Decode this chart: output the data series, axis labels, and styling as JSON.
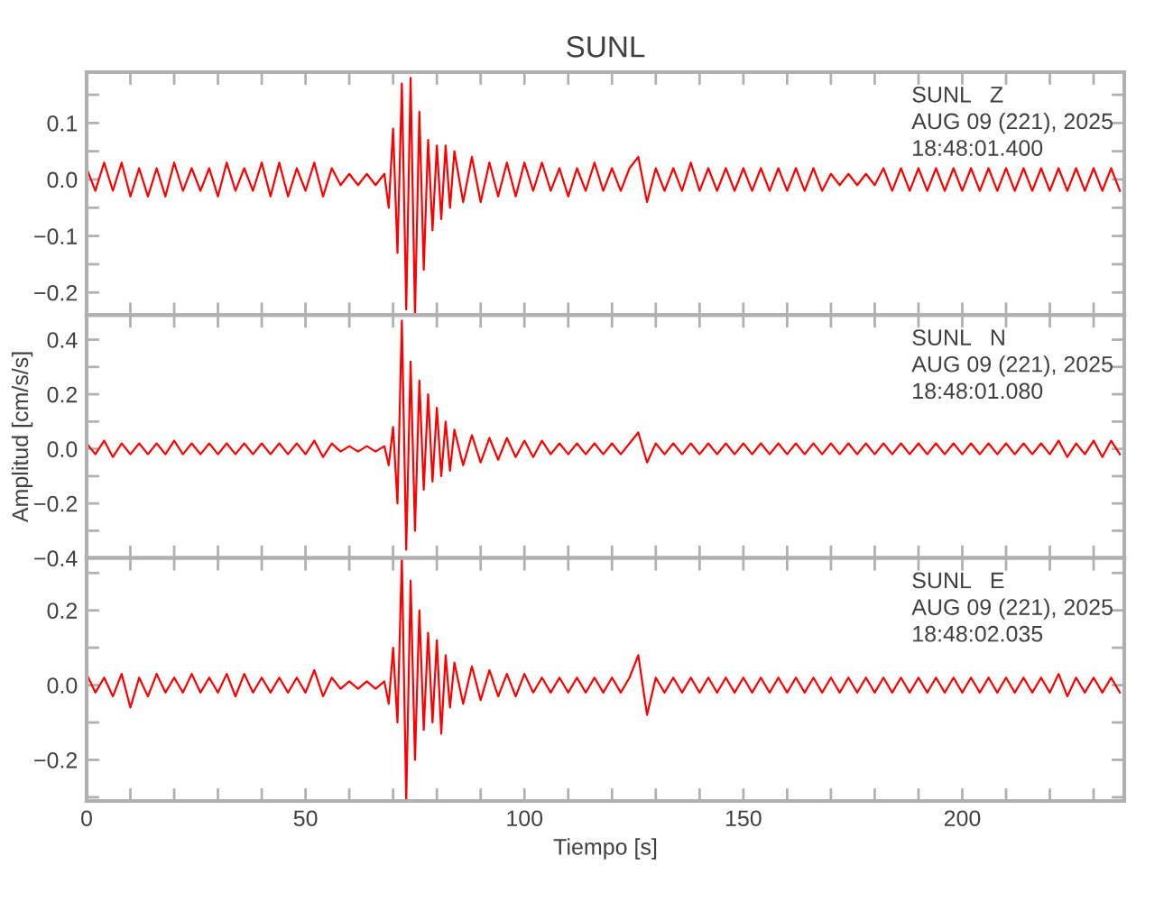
{
  "chart_data": [
    {
      "type": "line",
      "title": "SUNL",
      "tick_labels": "y",
      "grid": false,
      "legend": false,
      "line_style": "solid",
      "xlim": [
        0,
        237
      ],
      "ylim": [
        -0.24,
        0.19
      ],
      "xticks": [
        {
          "value": 0,
          "label": null
        },
        {
          "value": 10,
          "label": null
        },
        {
          "value": 20,
          "label": null
        },
        {
          "value": 30,
          "label": null
        },
        {
          "value": 40,
          "label": null
        },
        {
          "value": 50,
          "label": null
        },
        {
          "value": 60,
          "label": null
        },
        {
          "value": 70,
          "label": null
        },
        {
          "value": 80,
          "label": null
        },
        {
          "value": 90,
          "label": null
        },
        {
          "value": 100,
          "label": null
        },
        {
          "value": 110,
          "label": null
        },
        {
          "value": 120,
          "label": null
        },
        {
          "value": 130,
          "label": null
        },
        {
          "value": 140,
          "label": null
        },
        {
          "value": 150,
          "label": null
        },
        {
          "value": 160,
          "label": null
        },
        {
          "value": 170,
          "label": null
        },
        {
          "value": 180,
          "label": null
        },
        {
          "value": 190,
          "label": null
        },
        {
          "value": 200,
          "label": null
        },
        {
          "value": 210,
          "label": null
        },
        {
          "value": 220,
          "label": null
        },
        {
          "value": 230,
          "label": null
        }
      ],
      "yticks": [
        {
          "value": -0.2,
          "label": "−0.2"
        },
        {
          "value": -0.15,
          "label": null
        },
        {
          "value": -0.1,
          "label": "−0.1"
        },
        {
          "value": -0.05,
          "label": null
        },
        {
          "value": 0.0,
          "label": "0.0"
        },
        {
          "value": 0.05,
          "label": null
        },
        {
          "value": 0.1,
          "label": "0.1"
        },
        {
          "value": 0.15,
          "label": null
        }
      ],
      "annotations": [
        "SUNL   Z",
        "AUG 09 (221), 2025",
        "18:48:01.400"
      ],
      "series": [
        {
          "color": "#ff0000",
          "x": [
            0,
            2,
            4,
            6,
            8,
            10,
            12,
            14,
            16,
            18,
            20,
            22,
            24,
            26,
            28,
            30,
            32,
            34,
            36,
            38,
            40,
            42,
            44,
            46,
            48,
            50,
            52,
            54,
            56,
            58,
            60,
            62,
            64,
            66,
            68,
            69,
            70,
            71,
            72,
            73,
            74,
            75,
            76,
            77,
            78,
            79,
            80,
            81,
            82,
            83,
            84,
            86,
            88,
            90,
            92,
            94,
            96,
            98,
            100,
            102,
            104,
            106,
            108,
            110,
            112,
            114,
            116,
            118,
            120,
            122,
            124,
            126,
            128,
            130,
            132,
            134,
            136,
            138,
            140,
            142,
            144,
            146,
            148,
            150,
            152,
            154,
            156,
            158,
            160,
            162,
            164,
            166,
            168,
            170,
            172,
            174,
            176,
            178,
            180,
            182,
            184,
            186,
            188,
            190,
            192,
            194,
            196,
            198,
            200,
            202,
            204,
            206,
            208,
            210,
            212,
            214,
            216,
            218,
            220,
            222,
            224,
            226,
            228,
            230,
            232,
            234,
            236
          ],
          "values": [
            0.02,
            -0.02,
            0.03,
            -0.02,
            0.03,
            -0.03,
            0.02,
            -0.03,
            0.02,
            -0.03,
            0.03,
            -0.02,
            0.02,
            -0.02,
            0.02,
            -0.03,
            0.03,
            -0.02,
            0.02,
            -0.02,
            0.03,
            -0.03,
            0.03,
            -0.03,
            0.02,
            -0.02,
            0.03,
            -0.03,
            0.02,
            -0.01,
            0.01,
            -0.01,
            0.01,
            -0.01,
            0.01,
            -0.05,
            0.09,
            -0.13,
            0.17,
            -0.23,
            0.18,
            -0.24,
            0.12,
            -0.16,
            0.07,
            -0.09,
            0.06,
            -0.07,
            0.06,
            -0.05,
            0.05,
            -0.04,
            0.04,
            -0.04,
            0.03,
            -0.03,
            0.03,
            -0.03,
            0.03,
            -0.02,
            0.03,
            -0.02,
            0.02,
            -0.03,
            0.02,
            -0.02,
            0.03,
            -0.02,
            0.02,
            -0.02,
            0.02,
            0.04,
            -0.04,
            0.02,
            -0.02,
            0.02,
            -0.02,
            0.03,
            -0.02,
            0.02,
            -0.02,
            0.02,
            -0.02,
            0.02,
            -0.02,
            0.02,
            -0.02,
            0.02,
            -0.02,
            0.02,
            -0.02,
            0.02,
            -0.02,
            0.01,
            -0.01,
            0.01,
            -0.01,
            0.01,
            -0.01,
            0.02,
            -0.02,
            0.02,
            -0.02,
            0.02,
            -0.02,
            0.02,
            -0.02,
            0.02,
            -0.02,
            0.02,
            -0.02,
            0.02,
            -0.02,
            0.02,
            -0.02,
            0.02,
            -0.02,
            0.02,
            -0.02,
            0.02,
            -0.02,
            0.02,
            -0.02,
            0.02,
            -0.02,
            0.02,
            -0.02
          ]
        }
      ]
    },
    {
      "type": "line",
      "ylabel": "Amplitud [cm/s/s]",
      "tick_labels": "y",
      "grid": false,
      "legend": false,
      "line_style": "solid",
      "xlim": [
        0,
        237
      ],
      "ylim": [
        -0.4,
        0.49
      ],
      "xticks": [
        {
          "value": 0,
          "label": null
        },
        {
          "value": 10,
          "label": null
        },
        {
          "value": 20,
          "label": null
        },
        {
          "value": 30,
          "label": null
        },
        {
          "value": 40,
          "label": null
        },
        {
          "value": 50,
          "label": null
        },
        {
          "value": 60,
          "label": null
        },
        {
          "value": 70,
          "label": null
        },
        {
          "value": 80,
          "label": null
        },
        {
          "value": 90,
          "label": null
        },
        {
          "value": 100,
          "label": null
        },
        {
          "value": 110,
          "label": null
        },
        {
          "value": 120,
          "label": null
        },
        {
          "value": 130,
          "label": null
        },
        {
          "value": 140,
          "label": null
        },
        {
          "value": 150,
          "label": null
        },
        {
          "value": 160,
          "label": null
        },
        {
          "value": 170,
          "label": null
        },
        {
          "value": 180,
          "label": null
        },
        {
          "value": 190,
          "label": null
        },
        {
          "value": 200,
          "label": null
        },
        {
          "value": 210,
          "label": null
        },
        {
          "value": 220,
          "label": null
        },
        {
          "value": 230,
          "label": null
        }
      ],
      "yticks": [
        {
          "value": -0.4,
          "label": "−0.4"
        },
        {
          "value": -0.3,
          "label": null
        },
        {
          "value": -0.2,
          "label": "−0.2"
        },
        {
          "value": -0.1,
          "label": null
        },
        {
          "value": 0.0,
          "label": "0.0"
        },
        {
          "value": 0.1,
          "label": null
        },
        {
          "value": 0.2,
          "label": "0.2"
        },
        {
          "value": 0.3,
          "label": null
        },
        {
          "value": 0.4,
          "label": "0.4"
        }
      ],
      "annotations": [
        "SUNL   N",
        "AUG 09 (221), 2025",
        "18:48:01.080"
      ],
      "series": [
        {
          "color": "#ff0000",
          "x": [
            0,
            2,
            4,
            6,
            8,
            10,
            12,
            14,
            16,
            18,
            20,
            22,
            24,
            26,
            28,
            30,
            32,
            34,
            36,
            38,
            40,
            42,
            44,
            46,
            48,
            50,
            52,
            54,
            56,
            58,
            60,
            62,
            64,
            66,
            68,
            69,
            70,
            71,
            72,
            73,
            74,
            75,
            76,
            77,
            78,
            79,
            80,
            81,
            82,
            83,
            84,
            86,
            88,
            90,
            92,
            94,
            96,
            98,
            100,
            102,
            104,
            106,
            108,
            110,
            112,
            114,
            116,
            118,
            120,
            122,
            124,
            126,
            128,
            130,
            132,
            134,
            136,
            138,
            140,
            142,
            144,
            146,
            148,
            150,
            152,
            154,
            156,
            158,
            160,
            162,
            164,
            166,
            168,
            170,
            172,
            174,
            176,
            178,
            180,
            182,
            184,
            186,
            188,
            190,
            192,
            194,
            196,
            198,
            200,
            202,
            204,
            206,
            208,
            210,
            212,
            214,
            216,
            218,
            220,
            222,
            224,
            226,
            228,
            230,
            232,
            234,
            236
          ],
          "values": [
            0.02,
            -0.02,
            0.03,
            -0.03,
            0.02,
            -0.02,
            0.02,
            -0.02,
            0.02,
            -0.02,
            0.03,
            -0.02,
            0.02,
            -0.02,
            0.02,
            -0.02,
            0.02,
            -0.02,
            0.02,
            -0.02,
            0.02,
            -0.02,
            0.02,
            -0.02,
            0.02,
            -0.02,
            0.03,
            -0.03,
            0.02,
            -0.01,
            0.01,
            -0.01,
            0.01,
            -0.01,
            0.01,
            -0.06,
            0.08,
            -0.2,
            0.47,
            -0.37,
            0.32,
            -0.3,
            0.25,
            -0.15,
            0.2,
            -0.12,
            0.15,
            -0.1,
            0.1,
            -0.08,
            0.07,
            -0.06,
            0.05,
            -0.05,
            0.04,
            -0.04,
            0.04,
            -0.03,
            0.03,
            -0.03,
            0.03,
            -0.02,
            0.02,
            -0.02,
            0.02,
            -0.02,
            0.02,
            -0.02,
            0.02,
            -0.02,
            0.02,
            0.06,
            -0.05,
            0.02,
            -0.02,
            0.02,
            -0.02,
            0.02,
            -0.02,
            0.02,
            -0.02,
            0.02,
            -0.02,
            0.02,
            -0.02,
            0.02,
            -0.02,
            0.02,
            -0.02,
            0.02,
            -0.02,
            0.02,
            -0.02,
            0.02,
            -0.02,
            0.02,
            -0.02,
            0.02,
            -0.02,
            0.02,
            -0.02,
            0.02,
            -0.02,
            0.02,
            -0.02,
            0.02,
            -0.02,
            0.02,
            -0.02,
            0.02,
            -0.02,
            0.02,
            -0.02,
            0.02,
            -0.02,
            0.02,
            -0.02,
            0.02,
            -0.02,
            0.03,
            -0.03,
            0.02,
            -0.02,
            0.03,
            -0.03,
            0.03,
            -0.02
          ]
        }
      ]
    },
    {
      "type": "line",
      "xlabel": "Tiempo [s]",
      "grid": false,
      "legend": false,
      "line_style": "solid",
      "xlim": [
        0,
        237
      ],
      "ylim": [
        -0.31,
        0.34
      ],
      "xticks": [
        {
          "value": 0,
          "label": "0"
        },
        {
          "value": 10,
          "label": null
        },
        {
          "value": 20,
          "label": null
        },
        {
          "value": 30,
          "label": null
        },
        {
          "value": 40,
          "label": null
        },
        {
          "value": 50,
          "label": "50"
        },
        {
          "value": 60,
          "label": null
        },
        {
          "value": 70,
          "label": null
        },
        {
          "value": 80,
          "label": null
        },
        {
          "value": 90,
          "label": null
        },
        {
          "value": 100,
          "label": "100"
        },
        {
          "value": 110,
          "label": null
        },
        {
          "value": 120,
          "label": null
        },
        {
          "value": 130,
          "label": null
        },
        {
          "value": 140,
          "label": null
        },
        {
          "value": 150,
          "label": "150"
        },
        {
          "value": 160,
          "label": null
        },
        {
          "value": 170,
          "label": null
        },
        {
          "value": 180,
          "label": null
        },
        {
          "value": 190,
          "label": null
        },
        {
          "value": 200,
          "label": "200"
        },
        {
          "value": 210,
          "label": null
        },
        {
          "value": 220,
          "label": null
        },
        {
          "value": 230,
          "label": null
        }
      ],
      "yticks": [
        {
          "value": -0.3,
          "label": null
        },
        {
          "value": -0.2,
          "label": "−0.2"
        },
        {
          "value": -0.1,
          "label": null
        },
        {
          "value": 0.0,
          "label": "0.0"
        },
        {
          "value": 0.1,
          "label": null
        },
        {
          "value": 0.2,
          "label": "0.2"
        },
        {
          "value": 0.3,
          "label": null
        }
      ],
      "annotations": [
        "SUNL   E",
        "AUG 09 (221), 2025",
        "18:48:02.035"
      ],
      "series": [
        {
          "color": "#ff0000",
          "x": [
            0,
            2,
            4,
            6,
            8,
            10,
            12,
            14,
            16,
            18,
            20,
            22,
            24,
            26,
            28,
            30,
            32,
            34,
            36,
            38,
            40,
            42,
            44,
            46,
            48,
            50,
            52,
            54,
            56,
            58,
            60,
            62,
            64,
            66,
            68,
            69,
            70,
            71,
            72,
            73,
            74,
            75,
            76,
            77,
            78,
            79,
            80,
            81,
            82,
            83,
            84,
            86,
            88,
            90,
            92,
            94,
            96,
            98,
            100,
            102,
            104,
            106,
            108,
            110,
            112,
            114,
            116,
            118,
            120,
            122,
            124,
            126,
            128,
            130,
            132,
            134,
            136,
            138,
            140,
            142,
            144,
            146,
            148,
            150,
            152,
            154,
            156,
            158,
            160,
            162,
            164,
            166,
            168,
            170,
            172,
            174,
            176,
            178,
            180,
            182,
            184,
            186,
            188,
            190,
            192,
            194,
            196,
            198,
            200,
            202,
            204,
            206,
            208,
            210,
            212,
            214,
            216,
            218,
            220,
            222,
            224,
            226,
            228,
            230,
            232,
            234,
            236
          ],
          "values": [
            0.03,
            -0.02,
            0.02,
            -0.03,
            0.03,
            -0.06,
            0.02,
            -0.03,
            0.03,
            -0.02,
            0.02,
            -0.02,
            0.03,
            -0.02,
            0.02,
            -0.02,
            0.03,
            -0.03,
            0.03,
            -0.02,
            0.02,
            -0.02,
            0.02,
            -0.02,
            0.02,
            -0.02,
            0.04,
            -0.03,
            0.02,
            -0.01,
            0.01,
            -0.01,
            0.01,
            -0.01,
            0.01,
            -0.05,
            0.1,
            -0.1,
            0.34,
            -0.31,
            0.28,
            -0.2,
            0.2,
            -0.12,
            0.14,
            -0.1,
            0.12,
            -0.13,
            0.08,
            -0.06,
            0.06,
            -0.05,
            0.05,
            -0.04,
            0.04,
            -0.03,
            0.03,
            -0.03,
            0.03,
            -0.02,
            0.02,
            -0.02,
            0.02,
            -0.02,
            0.02,
            -0.02,
            0.02,
            -0.02,
            0.02,
            -0.02,
            0.02,
            0.08,
            -0.08,
            0.02,
            -0.02,
            0.02,
            -0.02,
            0.02,
            -0.02,
            0.02,
            -0.02,
            0.02,
            -0.02,
            0.02,
            -0.02,
            0.02,
            -0.02,
            0.02,
            -0.02,
            0.02,
            -0.02,
            0.02,
            -0.02,
            0.02,
            -0.02,
            0.02,
            -0.02,
            0.02,
            -0.02,
            0.02,
            -0.02,
            0.02,
            -0.02,
            0.02,
            -0.02,
            0.02,
            -0.02,
            0.02,
            -0.02,
            0.02,
            -0.02,
            0.02,
            -0.02,
            0.02,
            -0.02,
            0.02,
            -0.02,
            0.02,
            -0.02,
            0.03,
            -0.03,
            0.02,
            -0.02,
            0.02,
            -0.02,
            0.02,
            -0.02
          ]
        }
      ]
    }
  ]
}
